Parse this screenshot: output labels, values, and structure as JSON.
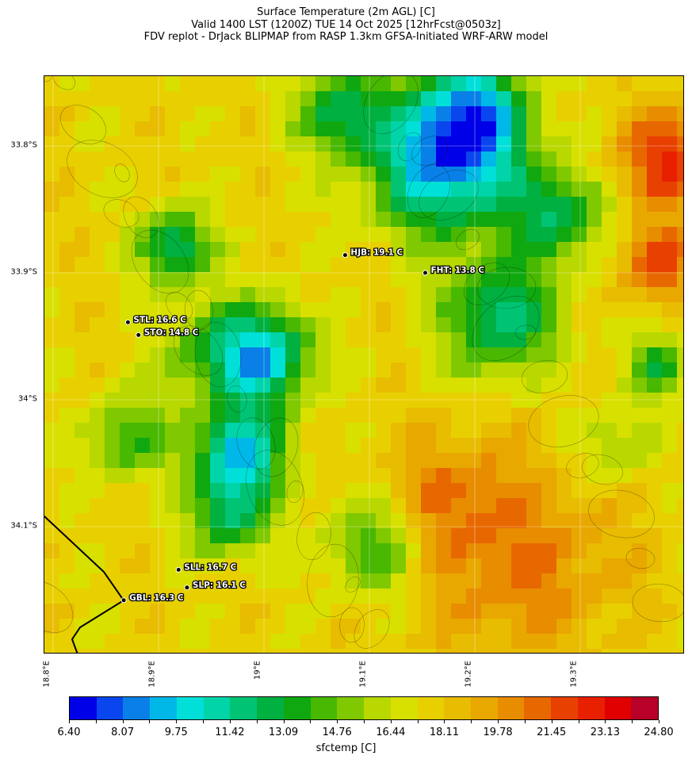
{
  "title": {
    "line1": "Surface Temperature (2m AGL) [C]",
    "line2": "Valid 1400 LST (1200Z) TUE 14 Oct 2025 [12hrFcst@0503z]",
    "line3": "FDV replot - DrJack BLIPMAP from RASP 1.3km GFSA-Initiated WRF-ARW model"
  },
  "map": {
    "lat_ticks": [
      "33.8°S",
      "33.9°S",
      "34°S",
      "34.1°S"
    ],
    "lon_ticks": [
      "18.8°E",
      "18.9°E",
      "19°E",
      "19.1°E",
      "19.2°E",
      "19.3°E"
    ],
    "stations": [
      {
        "label": "HJB: 19.1 C",
        "lon": 19.077,
        "lat": -33.886
      },
      {
        "label": "FHT: 13.8 C",
        "lon": 19.153,
        "lat": -33.9
      },
      {
        "label": "STL: 16.6 C",
        "lon": 18.871,
        "lat": -33.939
      },
      {
        "label": "STO: 14.8 C",
        "lon": 18.881,
        "lat": -33.949
      },
      {
        "label": "SLL: 16.7 C",
        "lon": 18.919,
        "lat": -34.134
      },
      {
        "label": "SLP: 16.1 C",
        "lon": 18.927,
        "lat": -34.148
      },
      {
        "label": "GBL: 16.3 C",
        "lon": 18.867,
        "lat": -34.158
      }
    ]
  },
  "colorbar": {
    "label": "sfctemp [C]",
    "ticks": [
      "6.40",
      "8.07",
      "9.75",
      "11.42",
      "13.09",
      "14.76",
      "16.44",
      "18.11",
      "19.78",
      "21.45",
      "23.13",
      "24.80"
    ],
    "colors": [
      "#0000e8",
      "#0a46ee",
      "#0880e8",
      "#00b8e8",
      "#00e0d8",
      "#00d4a8",
      "#00c474",
      "#00b040",
      "#10a810",
      "#48b800",
      "#80c800",
      "#b8d800",
      "#d8e000",
      "#e8d000",
      "#e8bc00",
      "#e8a800",
      "#e88c00",
      "#e86800",
      "#e84000",
      "#e82000",
      "#e00000",
      "#b80028"
    ]
  }
}
